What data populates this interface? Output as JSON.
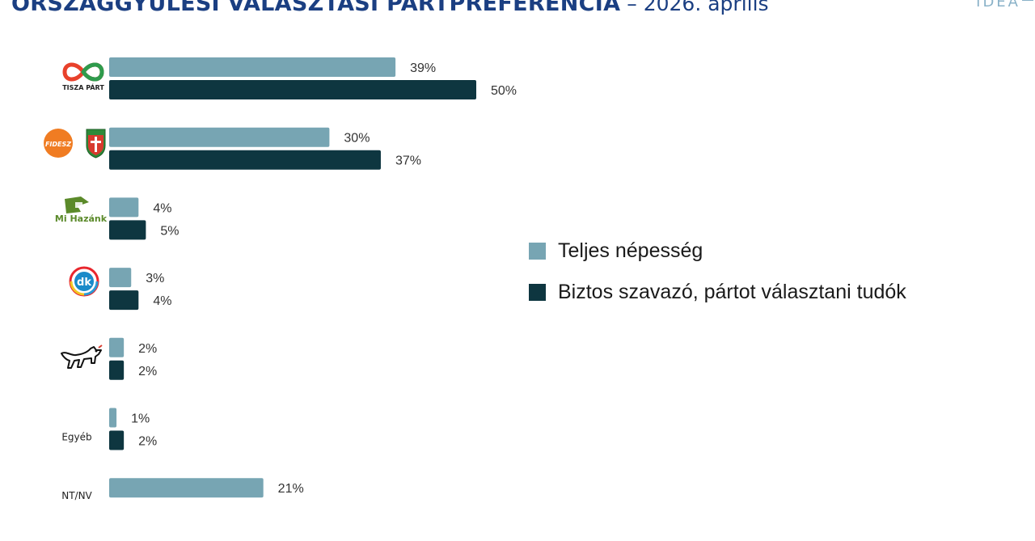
{
  "title": {
    "main": "ORSZÁGGYŰLÉSI VÁLASZTÁSI PÁRTPREFERENCIA",
    "sub": " – 2026. április"
  },
  "brand": "IDEA",
  "colors": {
    "title": "#1b3f82",
    "series_total": "#77a5b3",
    "series_sure": "#0e3640"
  },
  "categories": [
    {
      "name": "TISZA PÁRT",
      "logo": "tisza-infinity-logo"
    },
    {
      "name": "Fidesz–KDNP",
      "logo": "fidesz-kdnp-logo",
      "logo_text": "FIDESZ"
    },
    {
      "name": "Mi Hazánk",
      "logo": "mi-hazank-flag-logo",
      "logo_text": "Mi Hazánk"
    },
    {
      "name": "DK",
      "logo": "dk-logo",
      "logo_text": "dk"
    },
    {
      "name": "MKKP",
      "logo": "mkkp-dog-logo"
    },
    {
      "name": "Egyéb"
    },
    {
      "name": "NT/NV"
    }
  ],
  "legend": [
    {
      "label": "Teljes népesség",
      "color": "#77a5b3"
    },
    {
      "label": "Biztos szavazó, pártot választani tudók",
      "color": "#0e3640"
    }
  ],
  "chart_data": {
    "type": "bar",
    "orientation": "horizontal",
    "categories": [
      "TISZA PÁRT",
      "Fidesz–KDNP",
      "Mi Hazánk",
      "DK",
      "MKKP",
      "Egyéb",
      "NT/NV"
    ],
    "series": [
      {
        "name": "Teljes népesség",
        "values": [
          39,
          30,
          4,
          3,
          2,
          1,
          21
        ]
      },
      {
        "name": "Biztos szavazó, pártot választani tudók",
        "values": [
          50,
          37,
          5,
          4,
          2,
          2,
          null
        ]
      }
    ],
    "value_suffix": "%",
    "legend_position": "right",
    "grid": false
  }
}
